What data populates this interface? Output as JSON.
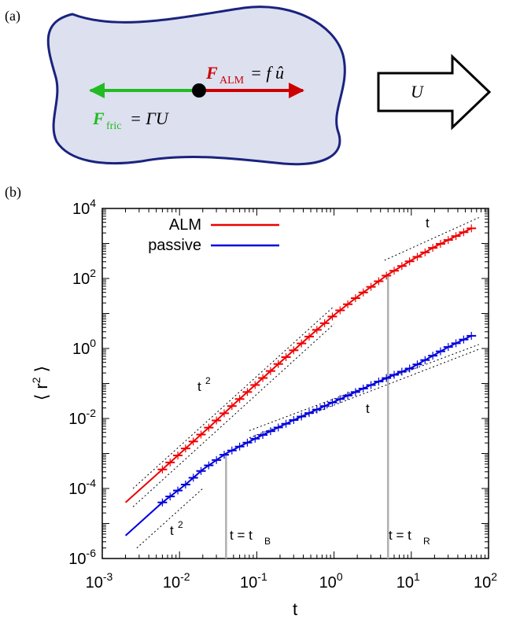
{
  "panel_a": {
    "label": "(a)",
    "force_alm": {
      "symbol": "F",
      "subscript": "ALM",
      "rhs": "= f û",
      "color": "#cc0000"
    },
    "force_fric": {
      "symbol": "F",
      "subscript": "fric",
      "rhs": "= ΓU",
      "color": "#22bb22"
    },
    "velocity_label": "U",
    "body_fill": "#dde0ef",
    "body_stroke": "#1a237e"
  },
  "panel_b": {
    "label": "(b)",
    "annotations": {
      "t2_upper": "t",
      "t2_upper_exp": "2",
      "t_upper": "t",
      "t_lower": "t",
      "t2_lower": "t",
      "t2_lower_exp": "2",
      "tB_label": "t = t",
      "tB_sub": "B",
      "tR_label": "t = t",
      "tR_sub": "R"
    }
  },
  "chart_data": {
    "type": "line",
    "xlabel": "t",
    "ylabel": "⟨ r2 ⟩",
    "xscale": "log",
    "yscale": "log",
    "xlim": [
      0.001,
      100
    ],
    "ylim": [
      1e-06,
      10000
    ],
    "x_ticks": [
      {
        "base": "10",
        "exp": "-3"
      },
      {
        "base": "10",
        "exp": "-2"
      },
      {
        "base": "10",
        "exp": "-1"
      },
      {
        "base": "10",
        "exp": "0"
      },
      {
        "base": "10",
        "exp": "1"
      },
      {
        "base": "10",
        "exp": "2"
      }
    ],
    "y_ticks": [
      {
        "base": "10",
        "exp": "-6"
      },
      {
        "base": "10",
        "exp": "-4"
      },
      {
        "base": "10",
        "exp": "-2"
      },
      {
        "base": "10",
        "exp": "0"
      },
      {
        "base": "10",
        "exp": "2"
      },
      {
        "base": "10",
        "exp": "4"
      }
    ],
    "legend_position": "top-left",
    "series": [
      {
        "name": "ALM",
        "color": "#ee0000",
        "x": [
          0.002,
          0.006,
          0.012,
          0.025,
          0.05,
          0.1,
          0.2,
          0.5,
          1,
          2,
          5,
          10,
          20,
          60
        ],
        "y": [
          4e-05,
          0.00035,
          0.0014,
          0.006,
          0.025,
          0.1,
          0.4,
          2.4,
          9,
          30,
          130,
          330,
          800,
          2700
        ]
      },
      {
        "name": "passive",
        "color": "#0000dd",
        "x": [
          0.002,
          0.006,
          0.012,
          0.02,
          0.04,
          0.1,
          0.3,
          1,
          3,
          5,
          10,
          30,
          60
        ],
        "y": [
          4.5e-06,
          4e-05,
          0.00013,
          0.00035,
          0.001,
          0.0028,
          0.009,
          0.03,
          0.09,
          0.15,
          0.28,
          1.1,
          2.3
        ]
      }
    ],
    "guide_lines": [
      {
        "label": "t2",
        "slope": 2,
        "x": [
          0.0025,
          1.0
        ],
        "y": [
          0.0001,
          16
        ]
      },
      {
        "label": "t",
        "slope": 1,
        "x": [
          4.5,
          75
        ],
        "y": [
          330,
          5500
        ]
      },
      {
        "label": "t",
        "slope": 1,
        "x": [
          0.08,
          75
        ],
        "y": [
          0.0045,
          1.3
        ]
      },
      {
        "label": "t2",
        "slope": 2,
        "x": [
          0.0028,
          0.02
        ],
        "y": [
          2e-06,
          0.0001
        ]
      }
    ],
    "vertical_markers": [
      {
        "label": "t = tB",
        "x": 0.04
      },
      {
        "label": "t = tR",
        "x": 5
      }
    ]
  }
}
